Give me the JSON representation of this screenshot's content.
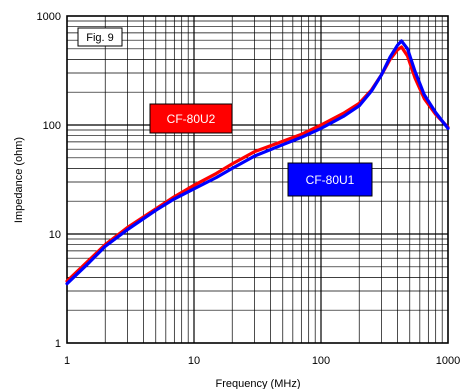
{
  "chart_data": {
    "type": "line",
    "figure_label": "Fig. 9",
    "xlabel": "Frequency (MHz)",
    "ylabel": "Impedance (ohm)",
    "x_scale": "log",
    "y_scale": "log",
    "xlim": [
      1,
      1000
    ],
    "ylim": [
      1,
      1000
    ],
    "grid": true,
    "x_ticks": [
      {
        "value": 1,
        "label": "1"
      },
      {
        "value": 10,
        "label": "10"
      },
      {
        "value": 100,
        "label": "100"
      },
      {
        "value": 1000,
        "label": "1000"
      }
    ],
    "y_ticks": [
      {
        "value": 1,
        "label": "1"
      },
      {
        "value": 10,
        "label": "10"
      },
      {
        "value": 100,
        "label": "100"
      },
      {
        "value": 1000,
        "label": "1000"
      }
    ],
    "series": [
      {
        "name": "CF-80U2",
        "color": "#ff0000",
        "label_bg": "#ff0000",
        "points": [
          [
            1,
            3.7
          ],
          [
            1.5,
            5.8
          ],
          [
            2,
            8
          ],
          [
            3,
            11.5
          ],
          [
            5,
            17
          ],
          [
            7,
            22
          ],
          [
            10,
            28
          ],
          [
            15,
            36
          ],
          [
            20,
            44
          ],
          [
            30,
            57
          ],
          [
            50,
            71
          ],
          [
            70,
            82
          ],
          [
            100,
            100
          ],
          [
            150,
            128
          ],
          [
            200,
            158
          ],
          [
            250,
            210
          ],
          [
            300,
            290
          ],
          [
            350,
            400
          ],
          [
            400,
            490
          ],
          [
            430,
            520
          ],
          [
            480,
            430
          ],
          [
            550,
            270
          ],
          [
            650,
            175
          ],
          [
            800,
            125
          ],
          [
            1000,
            95
          ]
        ]
      },
      {
        "name": "CF-80U1",
        "color": "#0000ff",
        "label_bg": "#0000ff",
        "points": [
          [
            1,
            3.5
          ],
          [
            1.5,
            5.5
          ],
          [
            2,
            7.7
          ],
          [
            3,
            11
          ],
          [
            5,
            16.5
          ],
          [
            7,
            21
          ],
          [
            10,
            26
          ],
          [
            15,
            33
          ],
          [
            20,
            40
          ],
          [
            30,
            52
          ],
          [
            50,
            66
          ],
          [
            70,
            77
          ],
          [
            100,
            93
          ],
          [
            150,
            120
          ],
          [
            200,
            150
          ],
          [
            250,
            205
          ],
          [
            300,
            290
          ],
          [
            350,
            420
          ],
          [
            400,
            540
          ],
          [
            430,
            590
          ],
          [
            480,
            500
          ],
          [
            550,
            310
          ],
          [
            650,
            190
          ],
          [
            800,
            130
          ],
          [
            1000,
            93
          ]
        ]
      }
    ]
  }
}
